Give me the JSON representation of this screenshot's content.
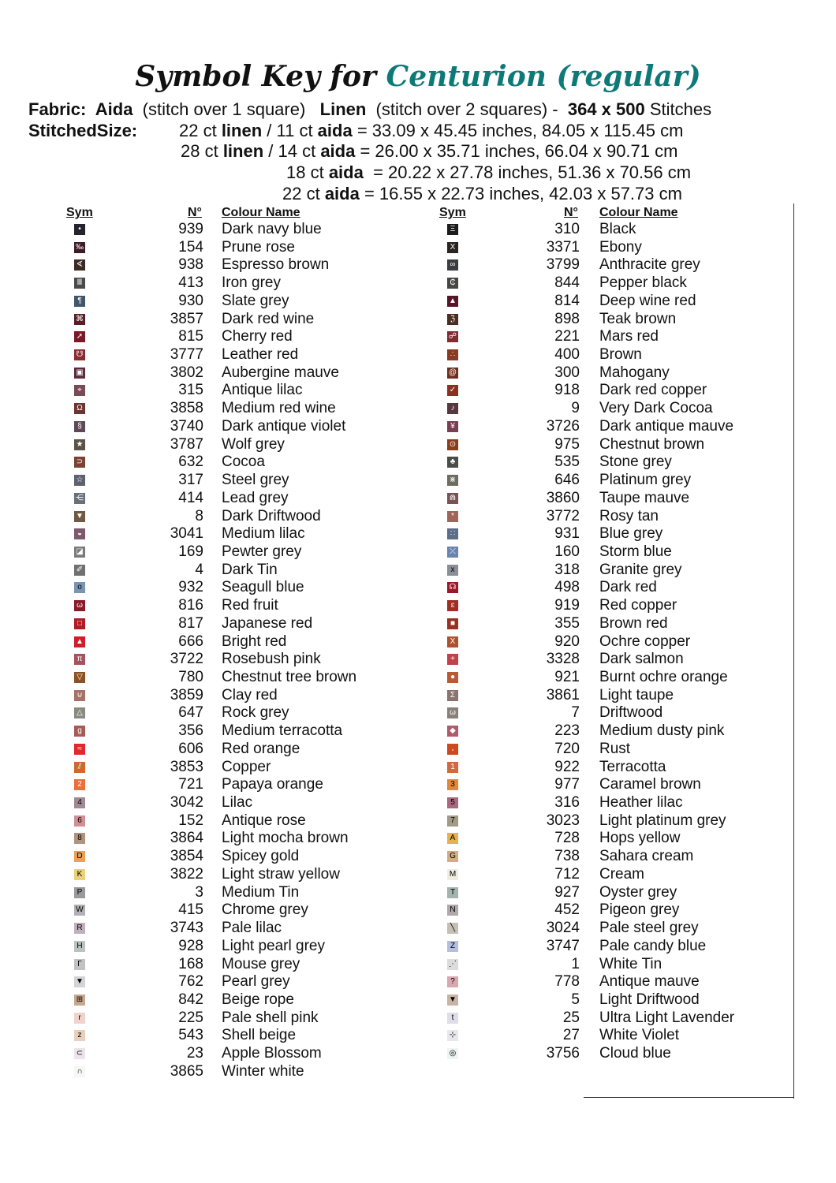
{
  "title": {
    "part1": "Symbol Key for ",
    "part2": "Centurion (regular)",
    "accent_color": "#0e7a78"
  },
  "fabric_line": [
    {
      "text": "Fabric:  Aida",
      "bold": true
    },
    {
      "text": "  (stitch over 1 square)   ",
      "bold": false
    },
    {
      "text": "Linen",
      "bold": true
    },
    {
      "text": "  (stitch over 2 squares) -  ",
      "bold": false
    },
    {
      "text": "364 x 500",
      "bold": true
    },
    {
      "text": " Stitches",
      "bold": false
    }
  ],
  "stitched_size_label": "StitchedSize:",
  "size_lines": [
    [
      {
        "text": "22 ct ",
        "bold": false
      },
      {
        "text": "linen",
        "bold": true
      },
      {
        "text": " / 11 ct ",
        "bold": false
      },
      {
        "text": "aida",
        "bold": true
      },
      {
        "text": " = 33.09 x 45.45 inches, 84.05 x 115.45 cm",
        "bold": false
      }
    ],
    [
      {
        "text": "28 ct ",
        "bold": false
      },
      {
        "text": "linen",
        "bold": true
      },
      {
        "text": " / 14 ct ",
        "bold": false
      },
      {
        "text": "aida",
        "bold": true
      },
      {
        "text": " = 26.00 x 35.71 inches, 66.04 x 90.71 cm",
        "bold": false
      }
    ],
    [
      {
        "text": "18 ct ",
        "bold": false
      },
      {
        "text": "aida",
        "bold": true
      },
      {
        "text": "  = 20.22 x 27.78 inches, 51.36 x 70.56 cm",
        "bold": false
      }
    ],
    [
      {
        "text": "22 ct ",
        "bold": false
      },
      {
        "text": "aida",
        "bold": true
      },
      {
        "text": " = 16.55 x 22.73 inches, 42.03 x 57.73 cm",
        "bold": false
      }
    ]
  ],
  "headers": {
    "sym": "Sym",
    "number": "N°",
    "name": "Colour Name"
  },
  "left": [
    [
      "•",
      "939",
      "Dark navy blue",
      "#25232e",
      "#fff"
    ],
    [
      "‰",
      "154",
      "Prune rose",
      "#3e1c25",
      "#fff"
    ],
    [
      "∢",
      "938",
      "Espresso brown",
      "#3b2a24",
      "#fff"
    ],
    [
      "Ⅲ",
      "413",
      "Iron grey",
      "#4a4a4d",
      "#fff"
    ],
    [
      "¶",
      "930",
      "Slate grey",
      "#41566a",
      "#fff"
    ],
    [
      "⌘",
      "3857",
      "Dark red wine",
      "#5a1f26",
      "#fff"
    ],
    [
      "➚",
      "815",
      "Cherry red",
      "#7a1a28",
      "#fff"
    ],
    [
      "☋",
      "3777",
      "Leather red",
      "#8a2c30",
      "#fff"
    ],
    [
      "▣",
      "3802",
      "Aubergine mauve",
      "#5e2b3b",
      "#fff"
    ],
    [
      "⌖",
      "315",
      "Antique lilac",
      "#7a4a55",
      "#fff"
    ],
    [
      "Ω",
      "3858",
      "Medium red wine",
      "#6e3431",
      "#fff"
    ],
    [
      "§",
      "3740",
      "Dark antique violet",
      "#5e4858",
      "#fff"
    ],
    [
      "★",
      "3787",
      "Wolf grey",
      "#5b5347",
      "#fff"
    ],
    [
      "⊃",
      "632",
      "Cocoa",
      "#7a4234",
      "#fff"
    ],
    [
      "☆",
      "317",
      "Steel grey",
      "#5e6270",
      "#fff"
    ],
    [
      "⋲",
      "414",
      "Lead grey",
      "#6b6f7a",
      "#fff"
    ],
    [
      "▼",
      "8",
      "Dark Driftwood",
      "#6f5a44",
      "#fff"
    ],
    [
      "◒",
      "3041",
      "Medium lilac",
      "#7a5a6c",
      "#fff"
    ],
    [
      "◪",
      "169",
      "Pewter grey",
      "#7a7a7a",
      "#fff"
    ],
    [
      "✐",
      "4",
      "Dark Tin",
      "#707070",
      "#fff"
    ],
    [
      "o",
      "932",
      "Seagull blue",
      "#7a94b4",
      "#000"
    ],
    [
      "ω",
      "816",
      "Red fruit",
      "#8a1a2a",
      "#fff"
    ],
    [
      "□",
      "817",
      "Japanese red",
      "#b01c25",
      "#fff"
    ],
    [
      "▲",
      "666",
      "Bright red",
      "#d01c2c",
      "#fff"
    ],
    [
      "π",
      "3722",
      "Rosebush pink",
      "#a5535f",
      "#fff"
    ],
    [
      "▽",
      "780",
      "Chestnut tree brown",
      "#8c5225",
      "#fff"
    ],
    [
      "⊍",
      "3859",
      "Clay red",
      "#a67268",
      "#fff"
    ],
    [
      "△",
      "647",
      "Rock grey",
      "#8a8a80",
      "#fff"
    ],
    [
      "g",
      "356",
      "Medium terracotta",
      "#a85a54",
      "#fff"
    ],
    [
      "≈",
      "606",
      "Red orange",
      "#e0282e",
      "#fff"
    ],
    [
      "⫽",
      "3853",
      "Copper",
      "#d3682e",
      "#fff"
    ],
    [
      "2",
      "721",
      "Papaya orange",
      "#e8703a",
      "#fff"
    ],
    [
      "4",
      "3042",
      "Lilac",
      "#a08a96",
      "#000"
    ],
    [
      "6",
      "152",
      "Antique rose",
      "#d09096",
      "#000"
    ],
    [
      "8",
      "3864",
      "Light mocha brown",
      "#b09480",
      "#000"
    ],
    [
      "D",
      "3854",
      "Spicey gold",
      "#e8a05a",
      "#000"
    ],
    [
      "K",
      "3822",
      "Light straw yellow",
      "#ecd07a",
      "#000"
    ],
    [
      "P",
      "3",
      "Medium Tin",
      "#9a9a9e",
      "#000"
    ],
    [
      "W",
      "415",
      "Chrome grey",
      "#b2b2b6",
      "#000"
    ],
    [
      "R",
      "3743",
      "Pale lilac",
      "#c0b0bc",
      "#000"
    ],
    [
      "H",
      "928",
      "Light pearl grey",
      "#bcc2c0",
      "#000"
    ],
    [
      "Γ",
      "168",
      "Mouse grey",
      "#c0c2c4",
      "#000"
    ],
    [
      "▼",
      "762",
      "Pearl grey",
      "#d4d4d8",
      "#000"
    ],
    [
      "⊞",
      "842",
      "Beige rope",
      "#c8a890",
      "#000"
    ],
    [
      "r",
      "225",
      "Pale shell pink",
      "#f2d2cc",
      "#000"
    ],
    [
      "z",
      "543",
      "Shell beige",
      "#e8d0bc",
      "#000"
    ],
    [
      "⊂",
      "23",
      "Apple Blossom",
      "#ece4ea",
      "#000"
    ],
    [
      "∩",
      "3865",
      "Winter white",
      "#f6f6f2",
      "#000"
    ]
  ],
  "right": [
    [
      "Ξ",
      "310",
      "Black",
      "#1c1c1c",
      "#fff"
    ],
    [
      "X",
      "3371",
      "Ebony",
      "#2a2420",
      "#fff"
    ],
    [
      "∞",
      "3799",
      "Anthracite grey",
      "#3a3c40",
      "#fff"
    ],
    [
      "₵",
      "844",
      "Pepper black",
      "#464644",
      "#fff"
    ],
    [
      "▲",
      "814",
      "Deep wine red",
      "#5a1428",
      "#fff"
    ],
    [
      "ℨ",
      "898",
      "Teak brown",
      "#4a2e24",
      "#fff"
    ],
    [
      "☍",
      "221",
      "Mars red",
      "#802c34",
      "#fff"
    ],
    [
      "∴",
      "400",
      "Brown",
      "#8a3a20",
      "#fff"
    ],
    [
      "@",
      "300",
      "Mahogany",
      "#6e2e1e",
      "#fff"
    ],
    [
      "✓",
      "918",
      "Dark red copper",
      "#8a3222",
      "#fff"
    ],
    [
      "♪",
      "9",
      "Very Dark Cocoa",
      "#563840",
      "#fff"
    ],
    [
      "¥",
      "3726",
      "Dark antique mauve",
      "#7a3e52",
      "#fff"
    ],
    [
      "⊙",
      "975",
      "Chestnut brown",
      "#8a3e1c",
      "#fff"
    ],
    [
      "♣",
      "535",
      "Stone grey",
      "#4a4c4a",
      "#fff"
    ],
    [
      "⋇",
      "646",
      "Platinum grey",
      "#6c6c60",
      "#fff"
    ],
    [
      "⋒",
      "3860",
      "Taupe mauve",
      "#7a5254",
      "#fff"
    ],
    [
      "*",
      "3772",
      "Rosy tan",
      "#a06458",
      "#fff"
    ],
    [
      "∷",
      "931",
      "Blue grey",
      "#5a6e88",
      "#fff"
    ],
    [
      "⤫",
      "160",
      "Storm blue",
      "#6a84b0",
      "#fff"
    ],
    [
      "x",
      "318",
      "Granite grey",
      "#8a8e96",
      "#000"
    ],
    [
      "☊",
      "498",
      "Dark red",
      "#9a1a2a",
      "#fff"
    ],
    [
      "ɛ",
      "919",
      "Red copper",
      "#a02e22",
      "#fff"
    ],
    [
      "■",
      "355",
      "Brown red",
      "#9a3022",
      "#fff"
    ],
    [
      "X",
      "920",
      "Ochre copper",
      "#b0502e",
      "#fff"
    ],
    [
      "+",
      "3328",
      "Dark salmon",
      "#c0424a",
      "#fff"
    ],
    [
      "●",
      "921",
      "Burnt ochre orange",
      "#b85a34",
      "#fff"
    ],
    [
      "Σ",
      "3861",
      "Light taupe",
      "#8a7472",
      "#fff"
    ],
    [
      "ω",
      "7",
      "Driftwood",
      "#8a8078",
      "#fff"
    ],
    [
      "◆",
      "223",
      "Medium dusty pink",
      "#b05a6a",
      "#fff"
    ],
    [
      "،",
      "720",
      "Rust",
      "#cc4a1c",
      "#fff"
    ],
    [
      "1",
      "922",
      "Terracotta",
      "#d26a3e",
      "#fff"
    ],
    [
      "3",
      "977",
      "Caramel brown",
      "#e0883c",
      "#000"
    ],
    [
      "5",
      "316",
      "Heather lilac",
      "#a86880",
      "#000"
    ],
    [
      "7",
      "3023",
      "Light platinum grey",
      "#a09a86",
      "#000"
    ],
    [
      "A",
      "728",
      "Hops yellow",
      "#e8b050",
      "#000"
    ],
    [
      "G",
      "738",
      "Sahara cream",
      "#d4ac84",
      "#000"
    ],
    [
      "M",
      "712",
      "Cream",
      "#efece0",
      "#000"
    ],
    [
      "T",
      "927",
      "Oyster grey",
      "#a4b2b0",
      "#000"
    ],
    [
      "N",
      "452",
      "Pigeon grey",
      "#b0a8aa",
      "#000"
    ],
    [
      "╲",
      "3024",
      "Pale steel grey",
      "#c4c0b4",
      "#000"
    ],
    [
      "Z",
      "3747",
      "Pale candy blue",
      "#b4bede",
      "#000"
    ],
    [
      "⋰",
      "1",
      "White Tin",
      "#dcdcdc",
      "#000"
    ],
    [
      "?",
      "778",
      "Antique mauve",
      "#d8a8b0",
      "#000"
    ],
    [
      "▼",
      "5",
      "Light Driftwood",
      "#c8b4a4",
      "#000"
    ],
    [
      "t",
      "25",
      "Ultra Light Lavender",
      "#e0dce8",
      "#000"
    ],
    [
      "⊹",
      "27",
      "White Violet",
      "#e8e8ec",
      "#000"
    ],
    [
      "◎",
      "3756",
      "Cloud blue",
      "#eef4f4",
      "#000"
    ]
  ]
}
